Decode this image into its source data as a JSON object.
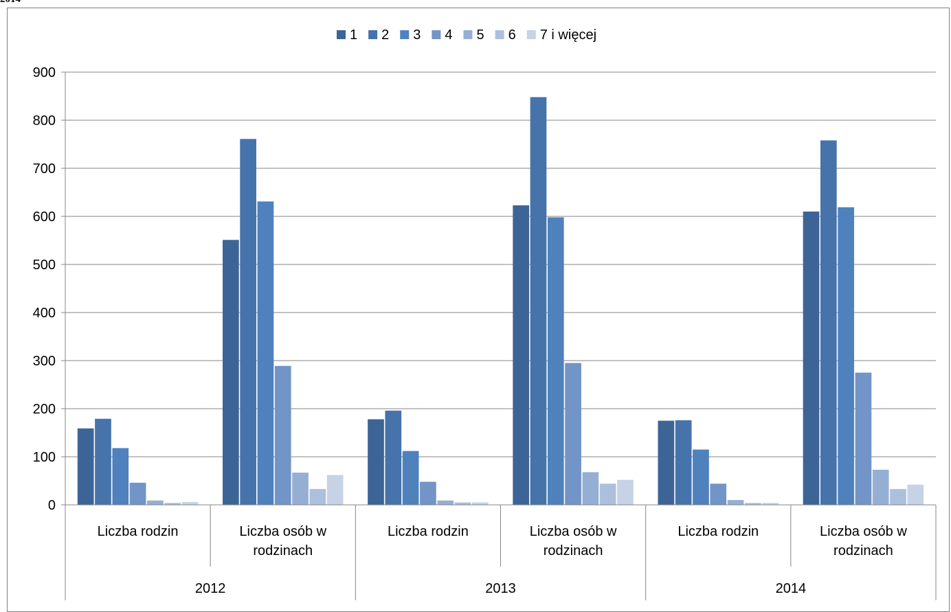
{
  "corner_text": "2014",
  "chart_data": {
    "type": "bar",
    "title": "",
    "xlabel": "",
    "ylabel": "",
    "ylim": [
      0,
      900
    ],
    "yticks": [
      0,
      100,
      200,
      300,
      400,
      500,
      600,
      700,
      800,
      900
    ],
    "grid": true,
    "legend_position": "top",
    "groups": [
      "2012",
      "2013",
      "2014"
    ],
    "categories": [
      [
        "Liczba rodzin"
      ],
      [
        "Liczba osób w",
        "rodzinach"
      ],
      [
        "Liczba rodzin"
      ],
      [
        "Liczba osób w",
        "rodzinach"
      ],
      [
        "Liczba rodzin"
      ],
      [
        "Liczba osób w",
        "rodzinach"
      ]
    ],
    "series": [
      {
        "name": "1",
        "color": "#3d6496",
        "values": [
          159,
          551,
          178,
          623,
          175,
          610
        ]
      },
      {
        "name": "2",
        "color": "#4673aa",
        "values": [
          179,
          761,
          196,
          848,
          176,
          758
        ]
      },
      {
        "name": "3",
        "color": "#4f81bd",
        "values": [
          118,
          631,
          112,
          598,
          115,
          619
        ]
      },
      {
        "name": "4",
        "color": "#7294c6",
        "values": [
          46,
          289,
          48,
          295,
          44,
          275
        ]
      },
      {
        "name": "5",
        "color": "#95afd4",
        "values": [
          9,
          67,
          9,
          68,
          10,
          73
        ]
      },
      {
        "name": "6",
        "color": "#acc0de",
        "values": [
          4,
          33,
          5,
          44,
          4,
          33
        ]
      },
      {
        "name": "7 i więcej",
        "color": "#c6d2e6",
        "values": [
          6,
          62,
          5,
          52,
          4,
          42
        ]
      }
    ]
  }
}
